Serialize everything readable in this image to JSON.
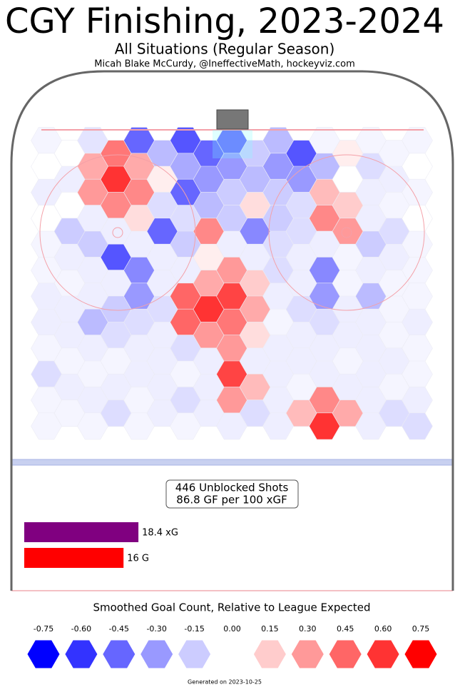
{
  "chart_data": {
    "type": "hexbin",
    "title": "CGY Finishing, 2023-2024",
    "subtitle": "All Situations (Regular Season)",
    "byline": "Micah Blake McCurdy, @IneffectiveMath, hockeyviz.com",
    "clim": [
      -0.75,
      0.75
    ],
    "low_color": "#0000ff",
    "high_color": "#ff0000",
    "hexes": [
      [
        -0.03,
        -0.08,
        -0.45,
        -0.5,
        -0.45,
        -0.2,
        -0.03,
        -0.03,
        -0.03
      ],
      [
        0,
        0.4,
        -0.2,
        -0.45,
        -0.15,
        -0.5,
        0.05,
        -0.03
      ],
      [
        0,
        0.25,
        0.25,
        -0.25,
        -0.3,
        -0.3,
        -0.2,
        -0.1,
        0
      ],
      [
        -0.05,
        0.6,
        0.05,
        -0.3,
        -0.2,
        -0.3,
        0,
        -0.05
      ],
      [
        -0.05,
        0.3,
        0.35,
        -0.45,
        -0.15,
        -0.15,
        0.2,
        -0.05,
        -0.03
      ],
      [
        0,
        0.35,
        -0.1,
        -0.2,
        0.1,
        -0.1,
        0.15,
        -0.03
      ],
      [
        0,
        -0.05,
        0.1,
        -0.1,
        -0.15,
        -0.15,
        0.35,
        -0.05,
        0
      ],
      [
        -0.15,
        -0.05,
        -0.45,
        0.35,
        -0.35,
        -0.1,
        0.3,
        -0.1
      ],
      [
        -0.03,
        -0.15,
        -0.05,
        -0.15,
        -0.05,
        -0.1,
        -0.05,
        -0.15,
        -0.03
      ],
      [
        -0.05,
        -0.5,
        -0.05,
        0.05,
        -0.05,
        -0.05,
        -0.03,
        -0.05
      ],
      [
        -0.03,
        -0.05,
        -0.35,
        -0.05,
        0.3,
        -0.1,
        -0.35,
        -0.05,
        -0.03
      ],
      [
        -0.03,
        -0.05,
        -0.05,
        0.25,
        0.15,
        -0.05,
        -0.03,
        -0.03
      ],
      [
        -0.05,
        -0.05,
        -0.3,
        0.45,
        0.55,
        -0.05,
        -0.3,
        -0.2,
        -0.03
      ],
      [
        -0.05,
        -0.15,
        -0.1,
        0.6,
        0.25,
        -0.1,
        -0.05,
        -0.03
      ],
      [
        -0.05,
        -0.2,
        -0.1,
        0.45,
        0.4,
        -0.03,
        -0.1,
        -0.05,
        -0.05
      ],
      [
        -0.05,
        -0.1,
        -0.05,
        0.3,
        0.1,
        -0.05,
        -0.05,
        -0.03
      ],
      [
        -0.03,
        -0.05,
        -0.05,
        -0.1,
        0.3,
        -0.05,
        -0.05,
        -0.05,
        -0.03
      ],
      [
        -0.03,
        -0.03,
        -0.05,
        -0.05,
        -0.05,
        -0.05,
        -0.03,
        -0.05
      ],
      [
        -0.1,
        -0.03,
        -0.05,
        -0.03,
        0.55,
        -0.05,
        -0.05,
        -0.05,
        -0.03
      ],
      [
        -0.05,
        -0.05,
        -0.05,
        -0.05,
        0.2,
        -0.03,
        -0.05,
        -0.03
      ],
      [
        -0.03,
        -0.05,
        -0.03,
        -0.1,
        0.3,
        -0.05,
        0.35,
        -0.05,
        -0.05
      ],
      [
        -0.03,
        -0.1,
        -0.05,
        -0.05,
        -0.1,
        0.2,
        0.25,
        -0.1
      ],
      [
        -0.03,
        -0.03,
        -0.03,
        -0.03,
        -0.05,
        -0.05,
        0.6,
        -0.05,
        -0.1
      ]
    ],
    "summary": [
      "446 Unblocked Shots",
      "86.8 GF per 100 xGF"
    ],
    "bars": {
      "values": [
        18.4,
        16
      ],
      "value_labels": [
        "18.4 xG",
        "16 G"
      ],
      "colors": [
        "#800080",
        "#ff0000"
      ]
    },
    "colorbar": {
      "title": "Smoothed Goal Count, Relative to League Expected",
      "ticks": [
        -0.75,
        {
          "value": -0.6,
          "label": "-0.60"
        },
        -0.45,
        {
          "value": -0.3,
          "label": "-0.30"
        },
        -0.15,
        {
          "value": 0,
          "label": "0.00"
        },
        0.15,
        {
          "value": 0.3,
          "label": "0.30"
        },
        0.45,
        {
          "value": 0.6,
          "label": "0.60"
        },
        0.75
      ]
    },
    "footer": "Generated on 2023-10-25"
  }
}
